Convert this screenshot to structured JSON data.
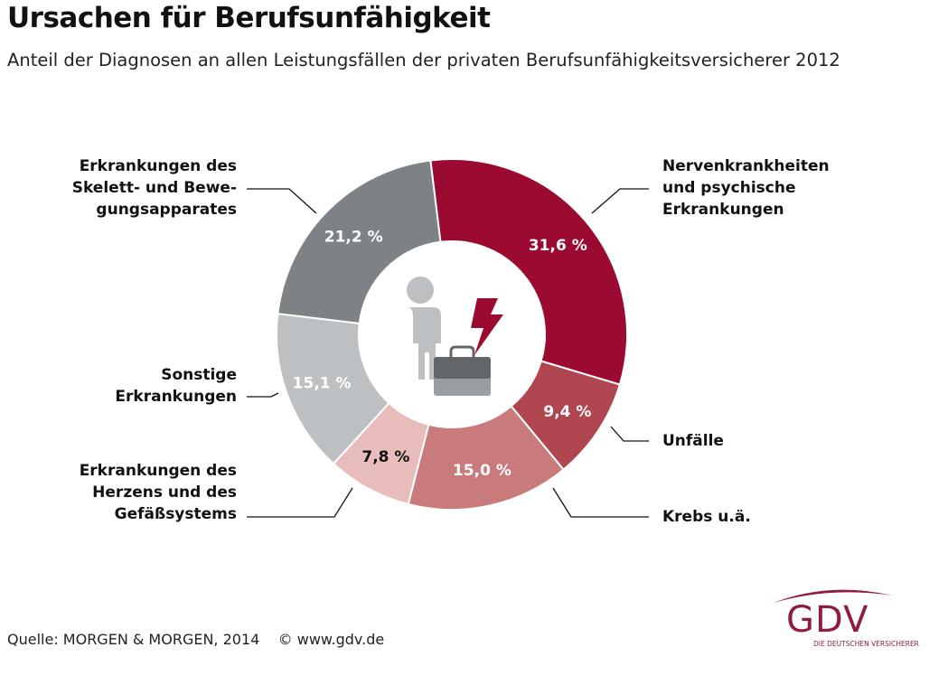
{
  "title": "Ursachen für Berufsunfähigkeit",
  "subtitle": "Anteil der Diagnosen an allen Leistungsfällen der privaten Berufsunfähigkeitsversicherer 2012",
  "source": "Quelle: MORGEN & MORGEN, 2014    © www.gdv.de",
  "logo": {
    "text": "GDV",
    "tagline": "DIE DEUTSCHEN VERSICHERER"
  },
  "chart_data": {
    "type": "pie",
    "donut": true,
    "categories": [
      "Nervenkrankheiten und psychische Erkrankungen",
      "Unfälle",
      "Krebs u.ä.",
      "Erkrankungen des Herzens und des Gefäßsystems",
      "Sonstige Erkrankungen",
      "Erkrankungen des Skelett- und Bewegungsapparates"
    ],
    "values": [
      31.6,
      9.4,
      15.0,
      7.8,
      15.1,
      21.2
    ],
    "value_labels": [
      "31,6 %",
      "9,4 %",
      "15,0 %",
      "7,8 %",
      "15,1 %",
      "21,2 %"
    ],
    "colors": [
      "#9b0a30",
      "#b04650",
      "#c97b7c",
      "#e8bcbb",
      "#bcc0c2",
      "#7c8285"
    ],
    "label_colors": [
      "#ffffff",
      "#ffffff",
      "#ffffff",
      "#111111",
      "#ffffff",
      "#ffffff"
    ],
    "legend_lines": [
      [
        "Nervenkrankheiten",
        "und psychische",
        "Erkrankungen"
      ],
      [
        "Unfälle"
      ],
      [
        "Krebs u.ä."
      ],
      [
        "Erkrankungen des",
        "Herzens und des",
        "Gefäßsystems"
      ],
      [
        "Sonstige",
        "Erkrankungen"
      ],
      [
        "Erkrankungen des",
        "Skelett- und Bewe-",
        "gungsapparates"
      ]
    ]
  }
}
